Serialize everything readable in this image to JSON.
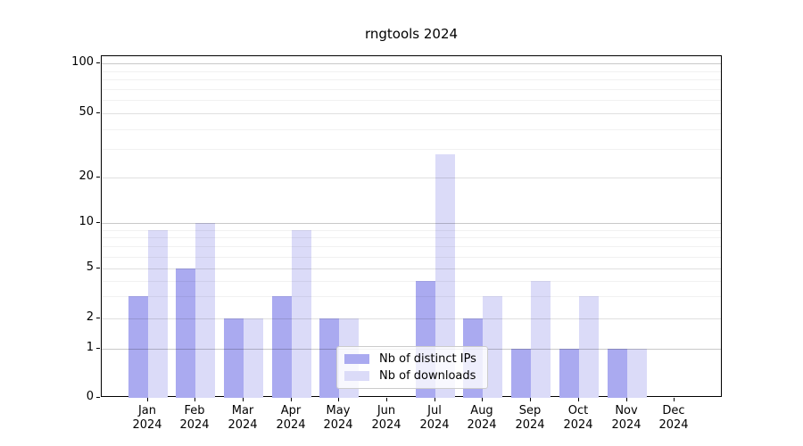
{
  "title": "rngtools 2024",
  "chart_data": {
    "type": "bar",
    "title": "rngtools 2024",
    "categories": [
      "Jan",
      "Feb",
      "Mar",
      "Apr",
      "May",
      "Jun",
      "Jul",
      "Aug",
      "Sep",
      "Oct",
      "Nov",
      "Dec"
    ],
    "category_year": "2024",
    "series": [
      {
        "name": "Nb of distinct IPs",
        "color": "#aaaaf0",
        "values": [
          3,
          5,
          2,
          3,
          2,
          0,
          4,
          2,
          1,
          1,
          1,
          0
        ]
      },
      {
        "name": "Nb of downloads",
        "color": "#dbdbf8",
        "values": [
          9,
          10,
          2,
          9,
          2,
          0,
          28,
          3,
          4,
          3,
          1,
          0
        ]
      }
    ],
    "yticks": [
      0,
      1,
      2,
      5,
      10,
      20,
      50,
      100
    ],
    "yscale": "symlog",
    "ylim": [
      0,
      110
    ],
    "grid": "on",
    "legend_position": "lower-center"
  }
}
